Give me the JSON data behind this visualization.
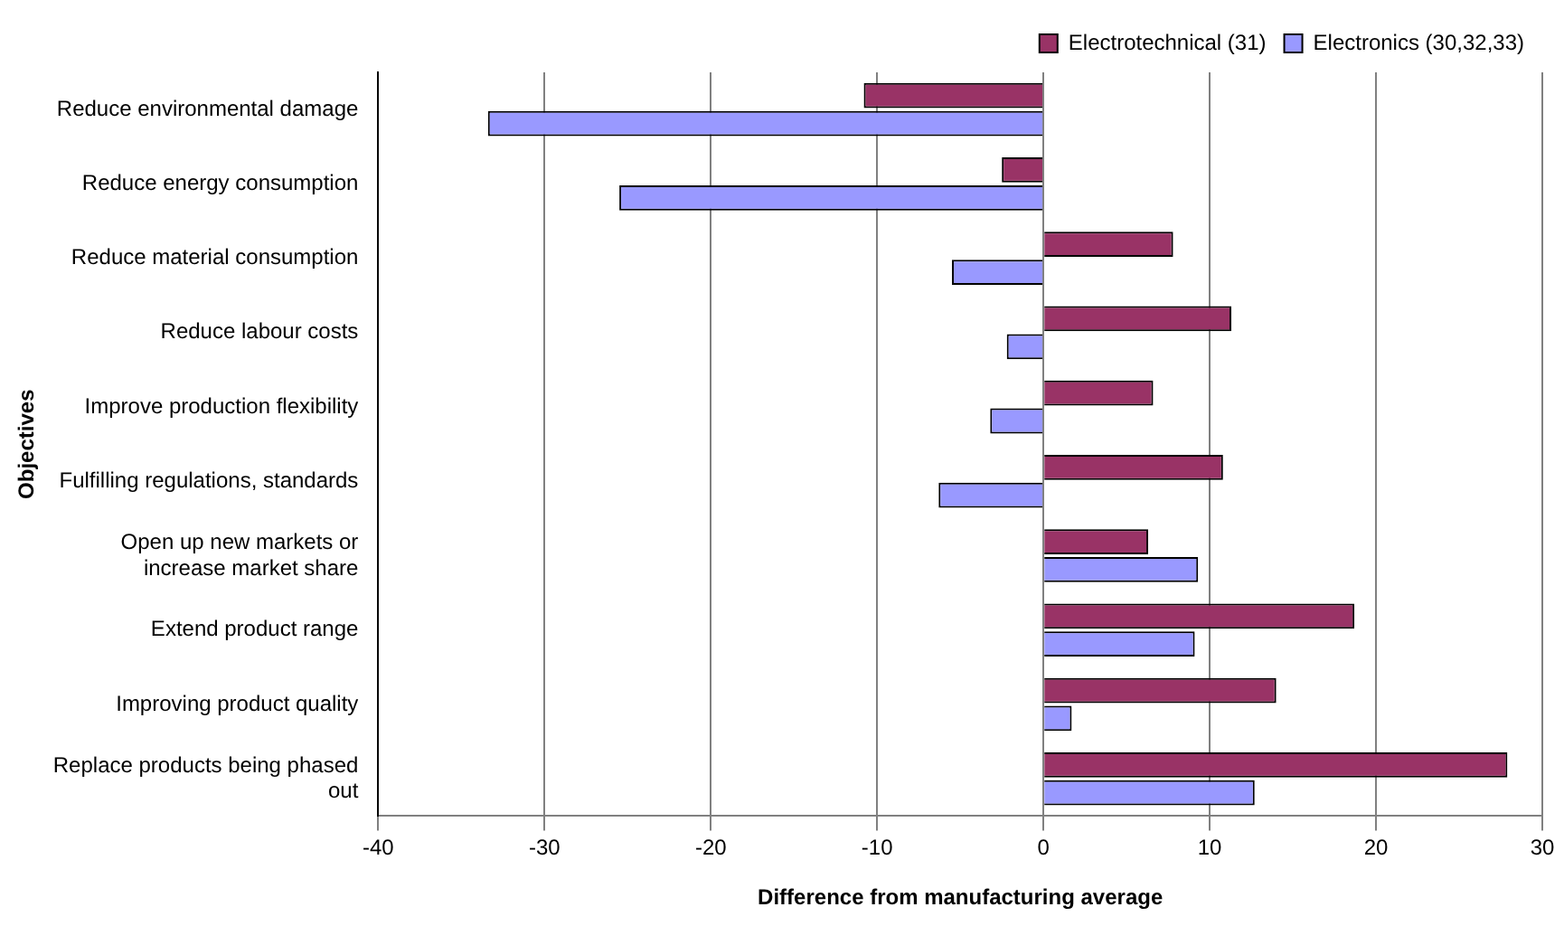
{
  "chart_data": {
    "type": "bar",
    "orientation": "horizontal",
    "xlabel": "Difference from manufacturing average",
    "ylabel": "Objectives",
    "categories": [
      "Reduce environmental damage",
      "Reduce energy consumption",
      "Reduce material consumption",
      "Reduce labour costs",
      "Improve production flexibility",
      "Fulfilling regulations, standards",
      "Open up new markets or increase market share",
      "Extend product range",
      "Improving product quality",
      "Replace products being phased out"
    ],
    "series": [
      {
        "name": "Electrotechnical (31)",
        "color": "#993366",
        "values": [
          -10.8,
          -2.5,
          7.8,
          11.3,
          6.6,
          10.8,
          6.3,
          18.7,
          14.0,
          27.9
        ]
      },
      {
        "name": "Electronics (30,32,33)",
        "color": "#9999ff",
        "values": [
          -33.4,
          -25.5,
          -5.5,
          -2.2,
          -3.2,
          -6.3,
          9.3,
          9.1,
          1.7,
          12.7
        ]
      }
    ],
    "xlim": [
      -40,
      30
    ],
    "xticks": [
      -40,
      -30,
      -20,
      -10,
      0,
      10,
      20,
      30
    ],
    "grid": "x",
    "legend": "top right"
  }
}
